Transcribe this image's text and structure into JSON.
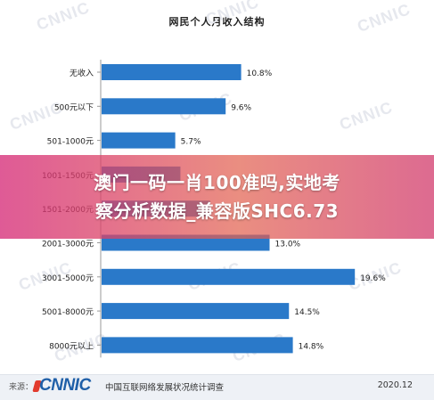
{
  "chart_data": {
    "type": "bar",
    "orientation": "horizontal",
    "title": "网民个人月收入结构",
    "categories": [
      "无收入",
      "500元以下",
      "501-1000元",
      "1001-1500元",
      "1501-2000元",
      "2001-3000元",
      "3001-5000元",
      "5001-8000元",
      "8000元以上"
    ],
    "values": [
      10.8,
      9.6,
      5.7,
      6.1,
      8.4,
      13.0,
      19.6,
      14.5,
      14.8
    ],
    "value_labels": [
      "10.8%",
      "9.6%",
      "5.7%",
      "",
      "",
      "13.0%",
      "19.6%",
      "14.5%",
      "14.8%"
    ],
    "xlim": [
      0,
      20
    ],
    "bar_color": "#2a79c9",
    "grid": false
  },
  "watermark": {
    "text": "CNNIC"
  },
  "banner": {
    "line1": "澳门一码一肖100准吗,实地考",
    "line2": "察分析数据_兼容版SHC6.73"
  },
  "footer": {
    "source": "来源：",
    "logo": "CNNIC",
    "org": "中国互联网络发展状况统计调查",
    "date": "2020.12"
  }
}
